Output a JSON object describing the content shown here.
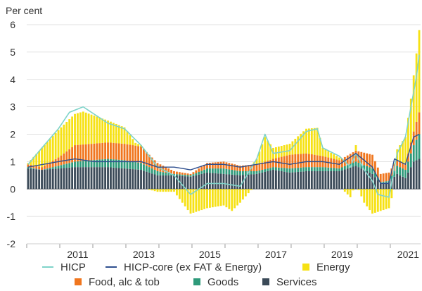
{
  "chart_data": {
    "type": "bar",
    "ylabel": "Per cent",
    "ylim": [
      -2,
      6
    ],
    "yticks": [
      -2,
      -1,
      0,
      1,
      2,
      3,
      4,
      5,
      6
    ],
    "x_start": "2010-01",
    "x_end": "2021-11",
    "xticks": [
      "2011",
      "2013",
      "2015",
      "2017",
      "2019",
      "2021"
    ],
    "grid": true,
    "colors": {
      "HICP": "#7fd3c9",
      "HICP-core": "#2f4f8f",
      "Energy": "#f6e114",
      "Food, alc & tob": "#f0761e",
      "Goods": "#2e9a7a",
      "Services": "#3b4a58"
    },
    "legend": {
      "placement": "bottom",
      "entries": [
        {
          "label": "HICP",
          "marker": "line",
          "color": "#7fd3c9"
        },
        {
          "label": "HICP-core (ex FAT & Energy)",
          "marker": "line",
          "color": "#2f4f8f"
        },
        {
          "label": "Energy",
          "marker": "square",
          "color": "#f6e114"
        },
        {
          "label": "Food, alc & tob",
          "marker": "square",
          "color": "#f0761e"
        },
        {
          "label": "Goods",
          "marker": "square",
          "color": "#2e9a7a"
        },
        {
          "label": "Services",
          "marker": "square",
          "color": "#3b4a58"
        }
      ]
    },
    "series": [
      {
        "name": "HICP",
        "type": "line",
        "keypoints": [
          [
            "2010-01",
            0.9
          ],
          [
            "2010-06",
            1.5
          ],
          [
            "2010-12",
            2.2
          ],
          [
            "2011-04",
            2.8
          ],
          [
            "2011-09",
            3.0
          ],
          [
            "2012-06",
            2.4
          ],
          [
            "2012-12",
            2.2
          ],
          [
            "2013-06",
            1.6
          ],
          [
            "2013-12",
            0.8
          ],
          [
            "2014-06",
            0.5
          ],
          [
            "2014-12",
            -0.2
          ],
          [
            "2015-06",
            0.2
          ],
          [
            "2015-12",
            0.2
          ],
          [
            "2016-06",
            0.1
          ],
          [
            "2016-12",
            1.1
          ],
          [
            "2017-03",
            2.0
          ],
          [
            "2017-06",
            1.3
          ],
          [
            "2017-12",
            1.4
          ],
          [
            "2018-06",
            2.1
          ],
          [
            "2018-10",
            2.2
          ],
          [
            "2018-12",
            1.5
          ],
          [
            "2019-06",
            1.2
          ],
          [
            "2019-10",
            0.8
          ],
          [
            "2019-12",
            1.3
          ],
          [
            "2020-03",
            0.7
          ],
          [
            "2020-06",
            0.3
          ],
          [
            "2020-08",
            -0.2
          ],
          [
            "2020-12",
            -0.3
          ],
          [
            "2021-03",
            1.3
          ],
          [
            "2021-06",
            1.9
          ],
          [
            "2021-08",
            3.0
          ],
          [
            "2021-10",
            4.1
          ],
          [
            "2021-11",
            4.9
          ]
        ]
      },
      {
        "name": "HICP-core (ex FAT & Energy)",
        "type": "line",
        "keypoints": [
          [
            "2010-01",
            0.8
          ],
          [
            "2010-12",
            1.0
          ],
          [
            "2011-06",
            1.1
          ],
          [
            "2012-01",
            1.0
          ],
          [
            "2012-12",
            1.0
          ],
          [
            "2013-06",
            1.0
          ],
          [
            "2013-12",
            0.8
          ],
          [
            "2014-06",
            0.8
          ],
          [
            "2014-12",
            0.7
          ],
          [
            "2015-06",
            0.9
          ],
          [
            "2015-12",
            0.9
          ],
          [
            "2016-06",
            0.8
          ],
          [
            "2016-12",
            0.9
          ],
          [
            "2017-06",
            1.0
          ],
          [
            "2017-12",
            0.9
          ],
          [
            "2018-06",
            1.0
          ],
          [
            "2018-12",
            1.0
          ],
          [
            "2019-06",
            0.9
          ],
          [
            "2019-12",
            1.3
          ],
          [
            "2020-06",
            0.8
          ],
          [
            "2020-09",
            0.2
          ],
          [
            "2020-12",
            0.2
          ],
          [
            "2021-02",
            1.1
          ],
          [
            "2021-06",
            0.9
          ],
          [
            "2021-09",
            1.9
          ],
          [
            "2021-11",
            2.0
          ]
        ]
      },
      {
        "name": "Services",
        "type": "bar",
        "keypoints": [
          [
            "2010-01",
            0.75
          ],
          [
            "2010-06",
            0.7
          ],
          [
            "2010-12",
            0.75
          ],
          [
            "2011-06",
            0.8
          ],
          [
            "2012-06",
            0.8
          ],
          [
            "2012-12",
            0.75
          ],
          [
            "2013-06",
            0.7
          ],
          [
            "2013-12",
            0.5
          ],
          [
            "2014-06",
            0.5
          ],
          [
            "2014-12",
            0.45
          ],
          [
            "2015-06",
            0.6
          ],
          [
            "2015-12",
            0.55
          ],
          [
            "2016-06",
            0.5
          ],
          [
            "2016-12",
            0.55
          ],
          [
            "2017-06",
            0.7
          ],
          [
            "2017-12",
            0.6
          ],
          [
            "2018-06",
            0.65
          ],
          [
            "2018-12",
            0.65
          ],
          [
            "2019-06",
            0.65
          ],
          [
            "2019-12",
            0.85
          ],
          [
            "2020-06",
            0.55
          ],
          [
            "2020-09",
            0.2
          ],
          [
            "2020-12",
            0.25
          ],
          [
            "2021-03",
            0.55
          ],
          [
            "2021-06",
            0.4
          ],
          [
            "2021-09",
            1.0
          ],
          [
            "2021-11",
            1.1
          ]
        ]
      },
      {
        "name": "Goods",
        "type": "bar",
        "keypoints": [
          [
            "2010-01",
            0.05
          ],
          [
            "2010-06",
            0.0
          ],
          [
            "2010-12",
            0.1
          ],
          [
            "2011-06",
            0.2
          ],
          [
            "2012-06",
            0.3
          ],
          [
            "2012-12",
            0.3
          ],
          [
            "2013-06",
            0.25
          ],
          [
            "2013-12",
            0.15
          ],
          [
            "2014-06",
            0.05
          ],
          [
            "2014-12",
            0.05
          ],
          [
            "2015-06",
            0.15
          ],
          [
            "2015-12",
            0.2
          ],
          [
            "2016-06",
            0.15
          ],
          [
            "2016-12",
            0.1
          ],
          [
            "2017-06",
            0.1
          ],
          [
            "2017-12",
            0.15
          ],
          [
            "2018-06",
            0.15
          ],
          [
            "2018-12",
            0.15
          ],
          [
            "2019-06",
            0.1
          ],
          [
            "2019-12",
            0.15
          ],
          [
            "2020-06",
            0.2
          ],
          [
            "2020-09",
            0.05
          ],
          [
            "2020-12",
            0.05
          ],
          [
            "2021-03",
            0.3
          ],
          [
            "2021-06",
            0.3
          ],
          [
            "2021-09",
            0.6
          ],
          [
            "2021-11",
            0.9
          ]
        ]
      },
      {
        "name": "Food, alc & tob",
        "type": "bar",
        "keypoints": [
          [
            "2010-01",
            0.1
          ],
          [
            "2010-06",
            0.1
          ],
          [
            "2010-12",
            0.3
          ],
          [
            "2011-06",
            0.6
          ],
          [
            "2012-01",
            0.6
          ],
          [
            "2012-06",
            0.6
          ],
          [
            "2012-12",
            0.6
          ],
          [
            "2013-06",
            0.6
          ],
          [
            "2013-12",
            0.3
          ],
          [
            "2014-06",
            0.1
          ],
          [
            "2014-12",
            0.05
          ],
          [
            "2015-06",
            0.2
          ],
          [
            "2015-12",
            0.25
          ],
          [
            "2016-06",
            0.2
          ],
          [
            "2016-12",
            0.25
          ],
          [
            "2017-06",
            0.3
          ],
          [
            "2017-12",
            0.5
          ],
          [
            "2018-06",
            0.5
          ],
          [
            "2018-12",
            0.4
          ],
          [
            "2019-06",
            0.3
          ],
          [
            "2019-12",
            0.4
          ],
          [
            "2020-06",
            0.5
          ],
          [
            "2020-09",
            0.3
          ],
          [
            "2020-12",
            0.3
          ],
          [
            "2021-03",
            0.2
          ],
          [
            "2021-06",
            0.2
          ],
          [
            "2021-09",
            0.5
          ],
          [
            "2021-11",
            0.8
          ]
        ]
      },
      {
        "name": "Energy",
        "type": "bar",
        "keypoints": [
          [
            "2010-01",
            0.05
          ],
          [
            "2010-06",
            0.7
          ],
          [
            "2010-12",
            1.0
          ],
          [
            "2011-04",
            1.1
          ],
          [
            "2011-09",
            1.2
          ],
          [
            "2012-06",
            0.8
          ],
          [
            "2012-12",
            0.6
          ],
          [
            "2013-04",
            0.1
          ],
          [
            "2013-12",
            -0.1
          ],
          [
            "2014-06",
            -0.1
          ],
          [
            "2014-12",
            -0.9
          ],
          [
            "2015-06",
            -0.7
          ],
          [
            "2015-12",
            -0.6
          ],
          [
            "2016-03",
            -0.8
          ],
          [
            "2016-06",
            -0.5
          ],
          [
            "2016-12",
            0.2
          ],
          [
            "2017-03",
            0.9
          ],
          [
            "2017-06",
            0.4
          ],
          [
            "2017-12",
            0.4
          ],
          [
            "2018-06",
            0.9
          ],
          [
            "2018-10",
            1.0
          ],
          [
            "2018-12",
            0.3
          ],
          [
            "2019-06",
            0.1
          ],
          [
            "2019-10",
            -0.3
          ],
          [
            "2019-12",
            0.2
          ],
          [
            "2020-03",
            -0.5
          ],
          [
            "2020-06",
            -0.9
          ],
          [
            "2020-09",
            -0.8
          ],
          [
            "2020-12",
            -0.7
          ],
          [
            "2021-03",
            0.4
          ],
          [
            "2021-06",
            1.0
          ],
          [
            "2021-08",
            1.6
          ],
          [
            "2021-10",
            2.5
          ],
          [
            "2021-11",
            3.0
          ]
        ]
      }
    ]
  }
}
